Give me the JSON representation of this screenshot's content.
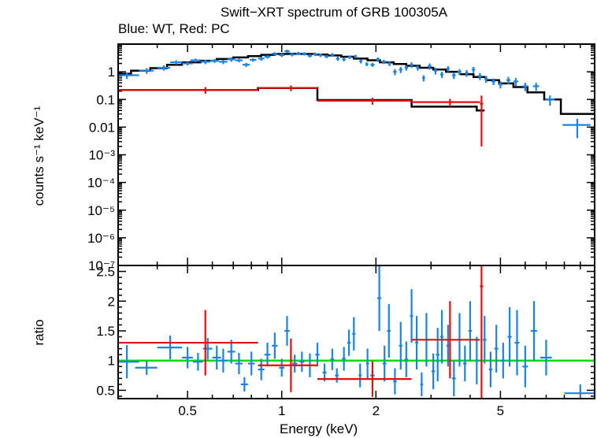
{
  "chart_data": [
    {
      "type": "scatter",
      "panel": "spectrum",
      "title": "Swift−XRT spectrum of GRB 100305A",
      "subtitle": "Blue: WT, Red: PC",
      "ylabel": "counts s⁻¹ keV⁻¹",
      "yscale": "log",
      "xscale": "log",
      "xlim": [
        0.3,
        10
      ],
      "ylim": [
        1e-07,
        10
      ],
      "yticks": [
        {
          "v": 1,
          "label": "1"
        },
        {
          "v": 0.1,
          "label": "0.1"
        },
        {
          "v": 0.01,
          "label": "0.01"
        },
        {
          "v": 0.001,
          "label": "10⁻³"
        },
        {
          "v": 0.0001,
          "label": "10⁻⁴"
        },
        {
          "v": 1e-05,
          "label": "10⁻⁵"
        },
        {
          "v": 1e-06,
          "label": "10⁻⁶"
        },
        {
          "v": 1e-07,
          "label": "10⁻⁷"
        }
      ],
      "series": [
        {
          "color": "#1a83e6",
          "points": [
            [
              0.32,
              0.03,
              0.75,
              0.2
            ],
            [
              0.37,
              0.02,
              1.1,
              0.25
            ],
            [
              0.42,
              0.02,
              1.4,
              0.3
            ],
            [
              0.46,
              0.02,
              2.2,
              0.4
            ],
            [
              0.5,
              0.02,
              2.0,
              0.3
            ],
            [
              0.53,
              0.02,
              2.6,
              0.4
            ],
            [
              0.57,
              0.02,
              2.3,
              0.4
            ],
            [
              0.61,
              0.02,
              2.5,
              0.4
            ],
            [
              0.65,
              0.02,
              2.3,
              0.4
            ],
            [
              0.69,
              0.02,
              2.8,
              0.5
            ],
            [
              0.73,
              0.02,
              2.6,
              0.4
            ],
            [
              0.77,
              0.02,
              1.8,
              0.3
            ],
            [
              0.81,
              0.02,
              2.7,
              0.4
            ],
            [
              0.86,
              0.02,
              3.0,
              0.5
            ],
            [
              0.9,
              0.02,
              3.5,
              0.5
            ],
            [
              0.95,
              0.02,
              4.5,
              0.6
            ],
            [
              1.0,
              0.02,
              4.0,
              0.6
            ],
            [
              1.04,
              0.02,
              5.5,
              0.8
            ],
            [
              1.08,
              0.02,
              4.2,
              0.6
            ],
            [
              1.13,
              0.02,
              4.6,
              0.6
            ],
            [
              1.18,
              0.02,
              4.5,
              0.6
            ],
            [
              1.23,
              0.02,
              3.8,
              0.5
            ],
            [
              1.28,
              0.02,
              4.3,
              0.6
            ],
            [
              1.33,
              0.02,
              4.0,
              0.6
            ],
            [
              1.39,
              0.02,
              3.6,
              0.5
            ],
            [
              1.45,
              0.02,
              4.1,
              0.6
            ],
            [
              1.51,
              0.02,
              3.0,
              0.5
            ],
            [
              1.58,
              0.02,
              2.8,
              0.4
            ],
            [
              1.65,
              0.02,
              3.4,
              0.5
            ],
            [
              1.72,
              0.02,
              3.6,
              0.5
            ],
            [
              1.79,
              0.02,
              2.4,
              0.4
            ],
            [
              1.87,
              0.02,
              1.9,
              0.3
            ],
            [
              1.95,
              0.03,
              1.8,
              0.3
            ],
            [
              2.03,
              0.03,
              2.8,
              0.5
            ],
            [
              2.12,
              0.03,
              2.3,
              0.4
            ],
            [
              2.21,
              0.03,
              2.0,
              0.4
            ],
            [
              2.3,
              0.03,
              1.0,
              0.25
            ],
            [
              2.4,
              0.03,
              1.2,
              0.3
            ],
            [
              2.5,
              0.03,
              1.4,
              0.3
            ],
            [
              2.6,
              0.03,
              1.8,
              0.4
            ],
            [
              2.72,
              0.03,
              1.4,
              0.3
            ],
            [
              2.84,
              0.03,
              0.6,
              0.15
            ],
            [
              2.97,
              0.04,
              1.6,
              0.4
            ],
            [
              3.1,
              0.04,
              1.1,
              0.3
            ],
            [
              3.25,
              0.04,
              0.8,
              0.2
            ],
            [
              3.4,
              0.04,
              1.3,
              0.3
            ],
            [
              3.55,
              0.05,
              0.75,
              0.2
            ],
            [
              3.7,
              0.05,
              1.0,
              0.25
            ],
            [
              3.9,
              0.05,
              0.9,
              0.25
            ],
            [
              4.1,
              0.05,
              1.2,
              0.3
            ],
            [
              4.3,
              0.06,
              0.7,
              0.2
            ],
            [
              4.5,
              0.06,
              0.55,
              0.15
            ],
            [
              4.75,
              0.07,
              0.45,
              0.12
            ],
            [
              5.0,
              0.08,
              0.35,
              0.1
            ],
            [
              5.3,
              0.08,
              0.5,
              0.15
            ],
            [
              5.6,
              0.1,
              0.45,
              0.15
            ],
            [
              6.0,
              0.12,
              0.3,
              0.1
            ],
            [
              6.5,
              0.15,
              0.3,
              0.1
            ],
            [
              7.2,
              0.25,
              0.1,
              0.04
            ],
            [
              8.8,
              0.9,
              0.012,
              0.008
            ]
          ]
        },
        {
          "color": "#e60e0e",
          "points": [
            [
              0.57,
              0.27,
              0.22,
              0.06
            ],
            [
              1.07,
              0.23,
              0.26,
              0.06
            ],
            [
              1.95,
              0.65,
              0.09,
              0.025
            ],
            [
              3.45,
              0.85,
              0.08,
              0.025
            ],
            [
              4.35,
              0.05,
              0.07,
              0.068
            ]
          ]
        }
      ],
      "models": [
        {
          "color": "#000000",
          "steps": [
            [
              0.3,
              0.33,
              0.85
            ],
            [
              0.33,
              0.38,
              1.1
            ],
            [
              0.38,
              0.43,
              1.35
            ],
            [
              0.43,
              0.48,
              1.8
            ],
            [
              0.48,
              0.55,
              2.2
            ],
            [
              0.55,
              0.62,
              2.5
            ],
            [
              0.62,
              0.7,
              2.9
            ],
            [
              0.7,
              0.78,
              3.3
            ],
            [
              0.78,
              0.86,
              3.7
            ],
            [
              0.86,
              0.95,
              4.1
            ],
            [
              0.95,
              1.05,
              4.4
            ],
            [
              1.05,
              1.16,
              4.5
            ],
            [
              1.16,
              1.28,
              4.4
            ],
            [
              1.28,
              1.4,
              4.2
            ],
            [
              1.4,
              1.55,
              3.9
            ],
            [
              1.55,
              1.7,
              3.5
            ],
            [
              1.7,
              1.88,
              3.0
            ],
            [
              1.88,
              2.06,
              2.6
            ],
            [
              2.06,
              2.28,
              2.2
            ],
            [
              2.28,
              2.5,
              1.9
            ],
            [
              2.5,
              2.76,
              1.65
            ],
            [
              2.76,
              3.05,
              1.4
            ],
            [
              3.05,
              3.35,
              1.2
            ],
            [
              3.35,
              3.7,
              1.0
            ],
            [
              3.7,
              4.1,
              0.82
            ],
            [
              4.1,
              4.5,
              0.65
            ],
            [
              4.5,
              4.95,
              0.5
            ],
            [
              4.95,
              5.5,
              0.38
            ],
            [
              5.5,
              6.1,
              0.28
            ],
            [
              6.1,
              6.9,
              0.18
            ],
            [
              6.9,
              7.8,
              0.1
            ],
            [
              7.8,
              10.0,
              0.03
            ]
          ]
        },
        {
          "color": "#000000",
          "steps": [
            [
              0.3,
              0.84,
              0.22
            ],
            [
              0.84,
              1.3,
              0.26
            ],
            [
              1.3,
              2.6,
              0.095
            ],
            [
              2.6,
              4.2,
              0.055
            ],
            [
              4.2,
              4.45,
              0.04
            ]
          ]
        }
      ]
    },
    {
      "type": "scatter",
      "panel": "ratio",
      "ylabel": "ratio",
      "xlabel": "Energy (keV)",
      "xscale": "log",
      "yscale": "linear",
      "xlim": [
        0.3,
        10
      ],
      "ylim": [
        0.36,
        2.6
      ],
      "yticks": [
        {
          "v": 0.5,
          "label": "0.5"
        },
        {
          "v": 1,
          "label": "1"
        },
        {
          "v": 1.5,
          "label": "1.5"
        },
        {
          "v": 2,
          "label": "2"
        },
        {
          "v": 2.5,
          "label": "2.5"
        }
      ],
      "xticks": [
        {
          "v": 0.5,
          "label": "0.5"
        },
        {
          "v": 1,
          "label": "1"
        },
        {
          "v": 2,
          "label": "2"
        },
        {
          "v": 5,
          "label": "5"
        }
      ],
      "reference_line": {
        "value": 1,
        "color": "#0ad80a"
      },
      "series": [
        {
          "color": "#1a83e6",
          "points": [
            [
              0.32,
              0.03,
              0.98,
              0.28
            ],
            [
              0.37,
              0.03,
              0.88,
              0.12
            ],
            [
              0.44,
              0.04,
              1.22,
              0.2
            ],
            [
              0.5,
              0.02,
              1.05,
              0.18
            ],
            [
              0.54,
              0.02,
              0.98,
              0.15
            ],
            [
              0.58,
              0.02,
              1.2,
              0.18
            ],
            [
              0.62,
              0.02,
              1.05,
              0.2
            ],
            [
              0.65,
              0.02,
              1.0,
              0.2
            ],
            [
              0.69,
              0.02,
              1.15,
              0.2
            ],
            [
              0.73,
              0.02,
              0.95,
              0.18
            ],
            [
              0.76,
              0.02,
              0.6,
              0.12
            ],
            [
              0.8,
              0.02,
              0.95,
              0.2
            ],
            [
              0.86,
              0.02,
              0.85,
              0.18
            ],
            [
              0.9,
              0.02,
              1.1,
              0.2
            ],
            [
              0.95,
              0.02,
              1.25,
              0.22
            ],
            [
              1.0,
              0.02,
              0.88,
              0.15
            ],
            [
              1.04,
              0.02,
              1.5,
              0.25
            ],
            [
              1.1,
              0.02,
              0.95,
              0.15
            ],
            [
              1.16,
              0.02,
              0.98,
              0.17
            ],
            [
              1.23,
              0.02,
              0.92,
              0.2
            ],
            [
              1.3,
              0.02,
              1.1,
              0.2
            ],
            [
              1.37,
              0.02,
              0.8,
              0.15
            ],
            [
              1.45,
              0.02,
              1.02,
              0.18
            ],
            [
              1.5,
              0.02,
              0.75,
              0.12
            ],
            [
              1.58,
              0.02,
              1.03,
              0.2
            ],
            [
              1.64,
              0.02,
              1.3,
              0.22
            ],
            [
              1.7,
              0.02,
              1.45,
              0.28
            ],
            [
              1.78,
              0.02,
              0.75,
              0.2
            ],
            [
              1.88,
              0.02,
              0.95,
              0.25
            ],
            [
              1.95,
              0.03,
              0.75,
              0.2
            ],
            [
              2.05,
              0.03,
              2.05,
              0.55
            ],
            [
              2.13,
              0.03,
              0.95,
              0.3
            ],
            [
              2.2,
              0.03,
              1.5,
              0.45
            ],
            [
              2.3,
              0.03,
              0.65,
              0.22
            ],
            [
              2.4,
              0.03,
              1.25,
              0.4
            ],
            [
              2.5,
              0.03,
              1.02,
              0.3
            ],
            [
              2.6,
              0.03,
              1.75,
              0.45
            ],
            [
              2.7,
              0.03,
              1.3,
              0.45
            ],
            [
              2.8,
              0.03,
              0.6,
              0.2
            ],
            [
              2.9,
              0.03,
              1.35,
              0.45
            ],
            [
              3.05,
              0.04,
              0.82,
              0.3
            ],
            [
              3.15,
              0.04,
              1.1,
              0.45
            ],
            [
              3.25,
              0.04,
              1.4,
              0.45
            ],
            [
              3.4,
              0.04,
              1.25,
              0.35
            ],
            [
              3.55,
              0.05,
              0.7,
              0.3
            ],
            [
              3.7,
              0.05,
              1.35,
              0.45
            ],
            [
              3.85,
              0.05,
              0.95,
              0.3
            ],
            [
              4.0,
              0.05,
              1.5,
              0.5
            ],
            [
              4.2,
              0.05,
              1.0,
              0.4
            ],
            [
              4.45,
              0.06,
              1.35,
              0.4
            ],
            [
              4.65,
              0.06,
              0.85,
              0.3
            ],
            [
              4.85,
              0.07,
              1.2,
              0.4
            ],
            [
              5.1,
              0.08,
              1.0,
              0.3
            ],
            [
              5.35,
              0.08,
              1.4,
              0.5
            ],
            [
              5.65,
              0.1,
              1.3,
              0.55
            ],
            [
              6.0,
              0.12,
              0.9,
              0.35
            ],
            [
              6.4,
              0.15,
              1.5,
              0.5
            ],
            [
              7.0,
              0.3,
              1.05,
              0.3
            ],
            [
              9.0,
              1.0,
              0.45,
              0.15
            ]
          ]
        },
        {
          "color": "#e60e0e",
          "points": [
            [
              0.57,
              0.27,
              1.3,
              0.55
            ],
            [
              1.07,
              0.23,
              0.92,
              0.45
            ],
            [
              1.95,
              0.65,
              0.69,
              0.3
            ],
            [
              3.45,
              0.85,
              1.35,
              0.65
            ],
            [
              4.35,
              0.05,
              2.25,
              2.25
            ]
          ]
        }
      ]
    }
  ]
}
